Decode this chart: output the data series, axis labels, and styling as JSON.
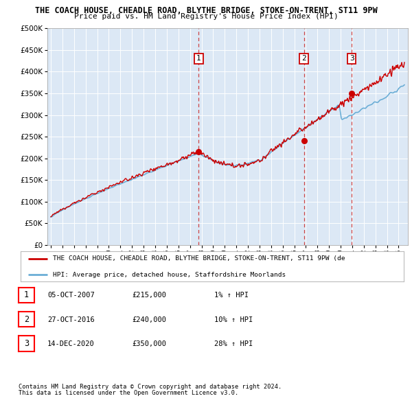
{
  "title": "THE COACH HOUSE, CHEADLE ROAD, BLYTHE BRIDGE, STOKE-ON-TRENT, ST11 9PW",
  "subtitle": "Price paid vs. HM Land Registry's House Price Index (HPI)",
  "ytick_values": [
    0,
    50000,
    100000,
    150000,
    200000,
    250000,
    300000,
    350000,
    400000,
    450000,
    500000
  ],
  "xmin": 1994.7,
  "xmax": 2025.8,
  "ymin": 0,
  "ymax": 500000,
  "sale_dates": [
    2007.76,
    2016.83,
    2020.96
  ],
  "sale_prices": [
    215000,
    240000,
    350000
  ],
  "sale_labels": [
    "1",
    "2",
    "3"
  ],
  "hpi_color": "#6baed6",
  "price_color": "#cc0000",
  "background_color": "#dce8f5",
  "legend_line1": "THE COACH HOUSE, CHEADLE ROAD, BLYTHE BRIDGE, STOKE-ON-TRENT, ST11 9PW (de",
  "legend_line2": "HPI: Average price, detached house, Staffordshire Moorlands",
  "table_rows": [
    {
      "num": "1",
      "date": "05-OCT-2007",
      "price": "£215,000",
      "change": "1% ↑ HPI"
    },
    {
      "num": "2",
      "date": "27-OCT-2016",
      "price": "£240,000",
      "change": "10% ↑ HPI"
    },
    {
      "num": "3",
      "date": "14-DEC-2020",
      "price": "£350,000",
      "change": "28% ↑ HPI"
    }
  ],
  "footnote1": "Contains HM Land Registry data © Crown copyright and database right 2024.",
  "footnote2": "This data is licensed under the Open Government Licence v3.0."
}
